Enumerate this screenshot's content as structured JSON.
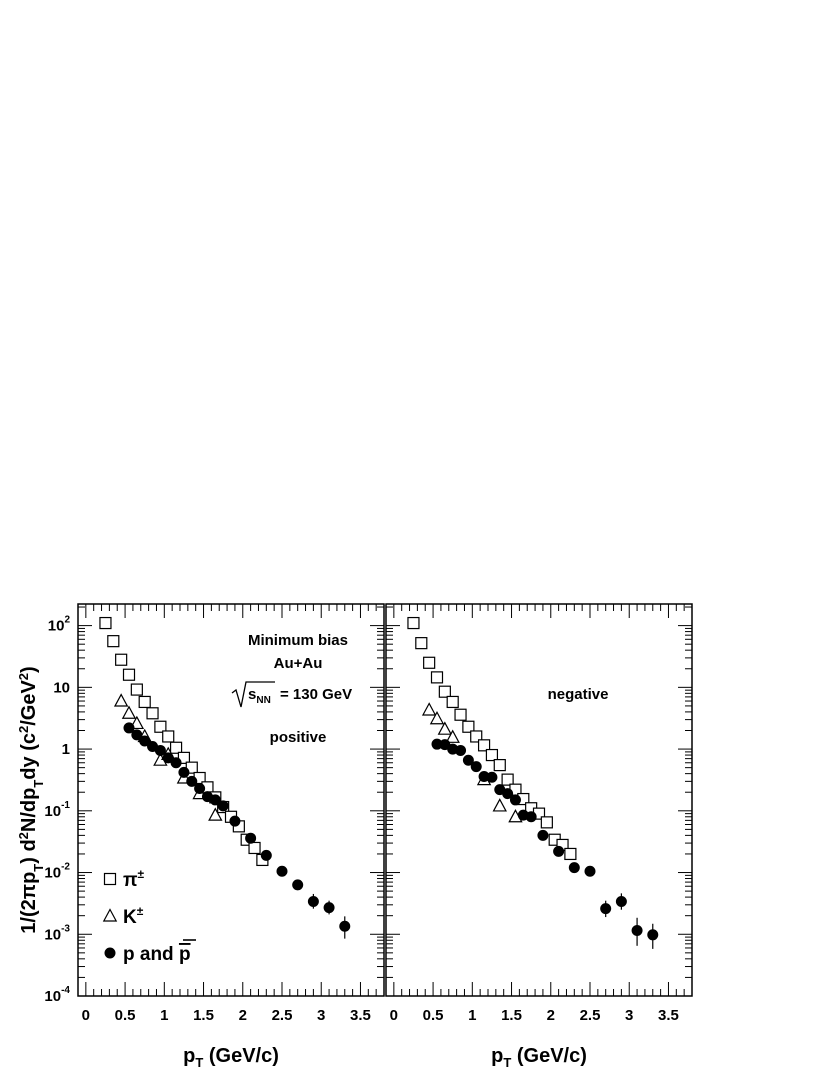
{
  "chart_data": [
    {
      "type": "scatter",
      "panel": "left",
      "annotations": [
        "Minimum bias",
        "Au+Au",
        "= 130 GeV",
        "positive"
      ],
      "sqrt_label": "s",
      "sqrt_sub": "NN",
      "xlabel": {
        "main": "p",
        "sub": "T",
        "rest": " (GeV/c)"
      },
      "ylabel": "1/(2πp_T) d²N/dp_T dy (c²/GeV²)",
      "xlim": [
        -0.1,
        3.8
      ],
      "ylim_log10": [
        -4,
        2.35
      ],
      "yscale": "log",
      "xticks": [
        "0",
        "0.5",
        "1",
        "1.5",
        "2",
        "2.5",
        "3",
        "3.5"
      ],
      "yticks": [
        {
          "base": "10",
          "exp": "-4"
        },
        {
          "base": "10",
          "exp": "-3"
        },
        {
          "base": "10",
          "exp": "-2"
        },
        {
          "base": "10",
          "exp": "-1"
        },
        {
          "base": "1",
          "exp": ""
        },
        {
          "base": "10",
          "exp": ""
        },
        {
          "base": "10",
          "exp": "2"
        }
      ],
      "legend": [
        {
          "marker": "square",
          "base": "π",
          "sup": "±"
        },
        {
          "marker": "triangle",
          "base": "K",
          "sup": "±"
        },
        {
          "marker": "circle",
          "base": "p and ",
          "over": "p"
        }
      ],
      "legend_placement": "bottom-left",
      "series": [
        {
          "marker": "square",
          "x": [
            0.25,
            0.35,
            0.45,
            0.55,
            0.65,
            0.75,
            0.85,
            0.95,
            1.05,
            1.15,
            1.25,
            1.35,
            1.45,
            1.55,
            1.65,
            1.75,
            1.85,
            1.95,
            2.05,
            2.15,
            2.25
          ],
          "y": [
            110,
            56,
            28,
            16,
            9.2,
            5.8,
            3.8,
            2.3,
            1.6,
            1.05,
            0.72,
            0.5,
            0.34,
            0.24,
            0.165,
            0.115,
            0.08,
            0.056,
            0.034,
            0.025,
            0.016
          ]
        },
        {
          "marker": "triangle",
          "x": [
            0.45,
            0.55,
            0.65,
            0.75,
            0.95,
            1.05,
            1.25,
            1.45,
            1.65
          ],
          "y": [
            6,
            3.8,
            2.6,
            1.6,
            0.66,
            0.82,
            0.34,
            0.19,
            0.085
          ]
        },
        {
          "marker": "circle",
          "x": [
            0.55,
            0.65,
            0.75,
            0.85,
            0.95,
            1.05,
            1.15,
            1.25,
            1.35,
            1.45,
            1.55,
            1.65,
            1.75,
            1.9,
            2.1,
            2.3,
            2.5,
            2.7,
            2.9,
            3.1,
            3.3
          ],
          "y": [
            2.2,
            1.7,
            1.35,
            1.1,
            0.95,
            0.72,
            0.6,
            0.42,
            0.3,
            0.23,
            0.17,
            0.15,
            0.12,
            0.068,
            0.036,
            0.019,
            0.0105,
            0.0063,
            0.0034,
            0.0027,
            0.00135
          ],
          "err_high": [
            0,
            0,
            0,
            0,
            0,
            0,
            0,
            0,
            0,
            0,
            0,
            0,
            0,
            0,
            0,
            0,
            0,
            0,
            0.0011,
            0.0008,
            0.0006
          ],
          "err_low": [
            0,
            0,
            0,
            0,
            0,
            0,
            0,
            0,
            0,
            0,
            0,
            0,
            0,
            0,
            0,
            0,
            0,
            0,
            0.0008,
            0.0006,
            0.0005
          ]
        }
      ]
    },
    {
      "type": "scatter",
      "panel": "right",
      "annotations": [
        "negative"
      ],
      "xlabel": {
        "main": "p",
        "sub": "T",
        "rest": " (GeV/c)"
      },
      "xlim": [
        -0.1,
        3.8
      ],
      "ylim_log10": [
        -4,
        2.35
      ],
      "yscale": "log",
      "xticks": [
        "0",
        "0.5",
        "1",
        "1.5",
        "2",
        "2.5",
        "3",
        "3.5"
      ],
      "series": [
        {
          "marker": "square",
          "x": [
            0.25,
            0.35,
            0.45,
            0.55,
            0.65,
            0.75,
            0.85,
            0.95,
            1.05,
            1.15,
            1.25,
            1.35,
            1.45,
            1.55,
            1.65,
            1.75,
            1.85,
            1.95,
            2.05,
            2.15,
            2.25
          ],
          "y": [
            110,
            52,
            25,
            14.5,
            8.5,
            5.8,
            3.6,
            2.3,
            1.6,
            1.15,
            0.8,
            0.55,
            0.32,
            0.22,
            0.155,
            0.11,
            0.09,
            0.065,
            0.034,
            0.028,
            0.02
          ]
        },
        {
          "marker": "triangle",
          "x": [
            0.45,
            0.55,
            0.65,
            0.75,
            1.15,
            1.35,
            1.55
          ],
          "y": [
            4.3,
            3.1,
            2.1,
            1.55,
            0.32,
            0.12,
            0.08
          ]
        },
        {
          "marker": "circle",
          "x": [
            0.55,
            0.65,
            0.75,
            0.85,
            0.95,
            1.05,
            1.15,
            1.25,
            1.35,
            1.45,
            1.55,
            1.65,
            1.75,
            1.9,
            2.1,
            2.3,
            2.5,
            2.7,
            2.9,
            3.1,
            3.3
          ],
          "y": [
            1.2,
            1.18,
            1.0,
            0.95,
            0.66,
            0.52,
            0.36,
            0.35,
            0.22,
            0.19,
            0.15,
            0.085,
            0.08,
            0.04,
            0.022,
            0.012,
            0.0105,
            0.0026,
            0.0034,
            0.00115,
            0.00098
          ],
          "err_high": [
            0,
            0,
            0,
            0,
            0,
            0,
            0,
            0,
            0,
            0,
            0,
            0,
            0,
            0,
            0,
            0,
            0,
            0.0009,
            0.0012,
            0.0007,
            0.0005
          ],
          "err_low": [
            0,
            0,
            0,
            0,
            0,
            0,
            0,
            0,
            0,
            0,
            0,
            0,
            0,
            0,
            0,
            0,
            0,
            0.0007,
            0.0009,
            0.0005,
            0.0004
          ]
        }
      ]
    }
  ]
}
